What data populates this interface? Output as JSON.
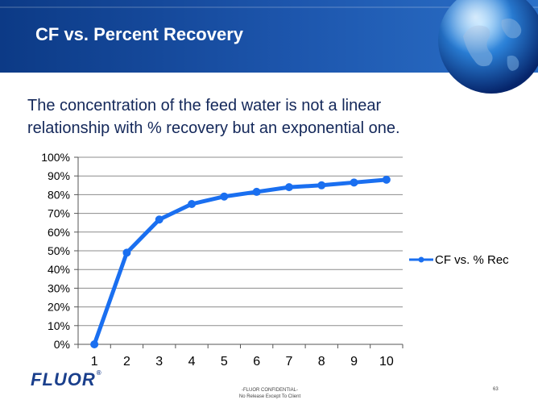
{
  "slide": {
    "title": "CF vs. Percent Recovery",
    "body_lines": [
      "The concentration of the feed water is not a linear",
      "relationship with % recovery but an exponential one."
    ]
  },
  "footer": {
    "logo": "FLUOR",
    "logo_mark": "®",
    "confidential": "-FLUOR CONFIDENTIAL-",
    "release_note": "No Release Except To Client",
    "page_number": "63"
  },
  "colors": {
    "header_blue": "#1a4ea6",
    "series_blue": "#1a6ff0",
    "text_navy": "#14285a"
  },
  "chart_data": {
    "type": "line",
    "title": "",
    "xlabel": "",
    "ylabel": "",
    "categories": [
      "1",
      "2",
      "3",
      "4",
      "5",
      "6",
      "7",
      "8",
      "9",
      "10"
    ],
    "series": [
      {
        "name": "CF vs. % Rec",
        "values": [
          0,
          0.49,
          0.667,
          0.75,
          0.79,
          0.815,
          0.84,
          0.85,
          0.865,
          0.88
        ]
      }
    ],
    "ylim": [
      0,
      1
    ],
    "y_ticks": [
      0,
      0.1,
      0.2,
      0.3,
      0.4,
      0.5,
      0.6,
      0.7,
      0.8,
      0.9,
      1.0
    ],
    "y_tick_labels": [
      "0%",
      "10%",
      "20%",
      "30%",
      "40%",
      "50%",
      "60%",
      "70%",
      "80%",
      "90%",
      "100%"
    ],
    "grid": true,
    "legend_position": "right"
  }
}
